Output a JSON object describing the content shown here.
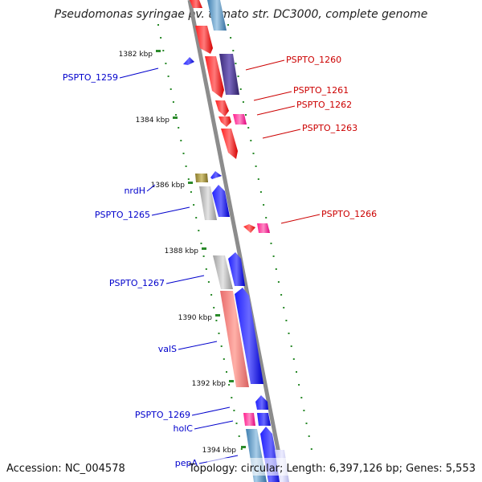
{
  "title": "Pseudomonas syringae pv. tomato str. DC3000, complete genome",
  "footer": {
    "accession": "Accession: NC_004578",
    "topology": "Topology: circular; Length: 6,397,126 bp; Genes: 5,553"
  },
  "colors": {
    "forward_gene": "#ff0000",
    "reverse_gene": "#0000ff",
    "forward_label": "#cc0000",
    "reverse_label": "#0000cc",
    "tick": "#2a8a2a",
    "backbone": "#8c8c8c"
  },
  "kbp_ticks": [
    "1382 kbp",
    "1384 kbp",
    "1386 kbp",
    "1388 kbp",
    "1390 kbp",
    "1392 kbp",
    "1394 kbp"
  ],
  "labels": {
    "forward": [
      "PSPTO_1260",
      "PSPTO_1261",
      "PSPTO_1262",
      "PSPTO_1263",
      "PSPTO_1266"
    ],
    "reverse": [
      "PSPTO_1259",
      "nrdH",
      "PSPTO_1265",
      "PSPTO_1267",
      "valS",
      "PSPTO_1269",
      "holC",
      "pepA"
    ]
  }
}
